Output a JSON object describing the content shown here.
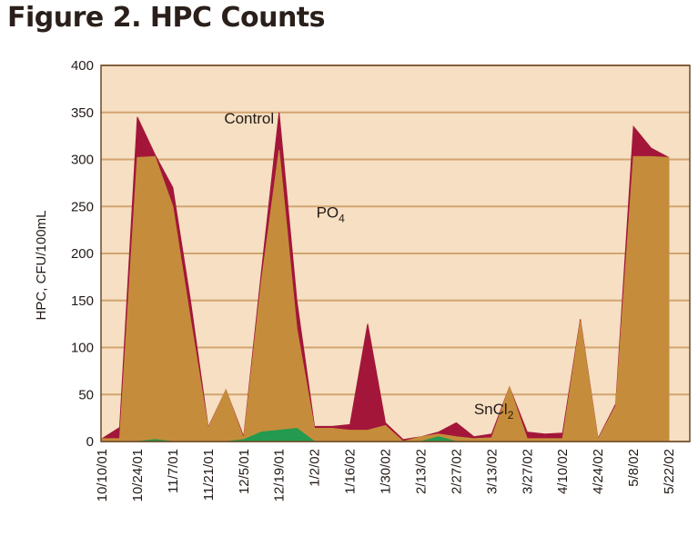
{
  "title": "Figure 2. HPC Counts",
  "chart_data": {
    "type": "area",
    "title": "Figure 2. HPC Counts",
    "xlabel": "",
    "ylabel": "HPC, CFU/100mL",
    "ylim": [
      0,
      400
    ],
    "yticks": [
      0,
      50,
      100,
      150,
      200,
      250,
      300,
      350,
      400
    ],
    "grid": true,
    "tick_labels": [
      "10/10/01",
      "10/24/01",
      "11/7/01",
      "11/21/01",
      "12/5/01",
      "12/19/01",
      "1/2/02",
      "1/16/02",
      "1/30/02",
      "2/13/02",
      "2/27/02",
      "3/13/02",
      "3/27/02",
      "4/10/02",
      "4/24/02",
      "5/8/02",
      "5/22/02"
    ],
    "x": [
      0,
      0.5,
      1,
      1.5,
      2,
      2.5,
      3,
      3.5,
      4,
      4.5,
      5,
      5.5,
      6,
      6.5,
      7,
      7.5,
      8,
      8.5,
      9,
      9.5,
      10,
      10.5,
      11,
      11.5,
      12,
      12.5,
      13,
      13.5,
      14,
      14.5,
      15,
      15.5,
      16
    ],
    "series": [
      {
        "name": "Control",
        "color": "#a3163a",
        "values": [
          3,
          15,
          345,
          305,
          270,
          150,
          15,
          55,
          5,
          180,
          350,
          150,
          16,
          16,
          18,
          125,
          20,
          2,
          5,
          10,
          20,
          5,
          8,
          58,
          10,
          8,
          9,
          130,
          3,
          40,
          335,
          312,
          302
        ]
      },
      {
        "name": "PO4",
        "color": "#c58d3b",
        "values": [
          3,
          3,
          302,
          303,
          250,
          130,
          14,
          55,
          3,
          170,
          310,
          120,
          14,
          14,
          12,
          12,
          17,
          0,
          5,
          8,
          5,
          3,
          4,
          58,
          3,
          3,
          3,
          128,
          2,
          38,
          303,
          303,
          302
        ]
      },
      {
        "name": "SnCl2",
        "color": "#239a4f",
        "values": [
          0,
          0,
          0,
          2,
          0,
          0,
          0,
          0,
          2,
          10,
          12,
          14,
          0,
          0,
          0,
          0,
          0,
          0,
          0,
          5,
          0,
          0,
          0,
          0,
          0,
          0,
          0,
          0,
          0,
          0,
          0,
          0,
          0
        ]
      }
    ],
    "annotations": [
      {
        "text": "Control",
        "x": 3.45,
        "y": 338
      },
      {
        "text": "PO",
        "sub": "4",
        "x": 6.05,
        "y": 238
      },
      {
        "text": "SnCl",
        "sub": "2",
        "x": 10.5,
        "y": 29
      }
    ],
    "colors": {
      "plot_bg": "#f6dfc2",
      "grid": "#d2a571",
      "border": "#6a4a2e"
    }
  }
}
